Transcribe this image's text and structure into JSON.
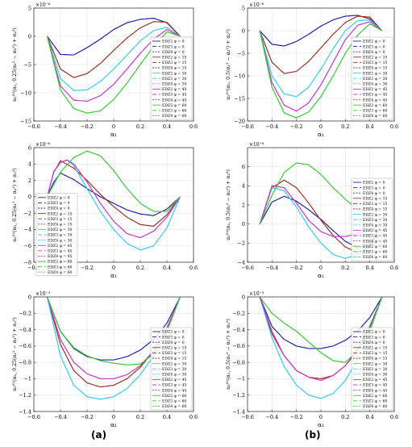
{
  "figure": {
    "label_a": "(a)",
    "label_b": "(b)"
  },
  "legend_labels": [
    "EDZ2 φ = 0",
    "EDZ3 φ = 0",
    "EDZ4 φ = 0",
    "EDZ2 φ = 15",
    "EDZ3 φ = 15",
    "EDZ4 φ = 15",
    "EDZ2 φ = 30",
    "EDZ3 φ = 30",
    "EDZ4 φ = 30",
    "EDZ2 φ = 45",
    "EDZ3 φ = 45",
    "EDZ4 φ = 45",
    "EDZ2 φ = 60",
    "EDZ3 φ = 60",
    "EDZ4 φ = 60"
  ],
  "phi_colors": {
    "0": "#2222aa",
    "15": "#993322",
    "30": "#33ccee",
    "45": "#cc33cc",
    "60": "#33cc33"
  },
  "chart_data": [
    {
      "id": "a1",
      "type": "line",
      "column": "a",
      "row": 1,
      "ylabel": "u₃⁽⁰⁾(α₁, 0.25(α₁² − α₂²) + α₂²)",
      "xlabel": "α₁",
      "exponent": "×10⁻⁶",
      "xlim": [
        -0.6,
        0.6
      ],
      "ylim": [
        -15,
        5
      ],
      "xticks": [
        -0.6,
        -0.4,
        -0.2,
        0,
        0.2,
        0.4,
        0.6
      ],
      "yticks": [
        -15,
        -10,
        -5,
        0,
        5
      ],
      "grid": true,
      "legend": "right",
      "series": [
        {
          "phi": 0,
          "x": [
            -0.5,
            -0.4,
            -0.3,
            -0.2,
            -0.1,
            0,
            0.1,
            0.2,
            0.3,
            0.4,
            0.5
          ],
          "y": [
            0,
            -3.2,
            -3.3,
            -2.0,
            -0.5,
            1.2,
            2.4,
            3.0,
            3.2,
            2.4,
            0
          ]
        },
        {
          "phi": 15,
          "x": [
            -0.5,
            -0.4,
            -0.3,
            -0.2,
            -0.1,
            0,
            0.1,
            0.2,
            0.3,
            0.4,
            0.5
          ],
          "y": [
            0,
            -5.8,
            -7.3,
            -6.6,
            -4.8,
            -2.5,
            -0.3,
            1.5,
            2.6,
            2.5,
            0
          ]
        },
        {
          "phi": 30,
          "x": [
            -0.5,
            -0.4,
            -0.3,
            -0.2,
            -0.1,
            0,
            0.1,
            0.2,
            0.3,
            0.4,
            0.5
          ],
          "y": [
            0,
            -7.5,
            -9.6,
            -9.5,
            -8.0,
            -5.8,
            -3.3,
            -0.8,
            1.0,
            1.6,
            0
          ]
        },
        {
          "phi": 45,
          "x": [
            -0.5,
            -0.4,
            -0.3,
            -0.2,
            -0.1,
            0,
            0.1,
            0.2,
            0.3,
            0.4,
            0.5
          ],
          "y": [
            0,
            -8.8,
            -11.3,
            -11.5,
            -10.5,
            -8.5,
            -5.8,
            -3.0,
            -0.5,
            1.2,
            0
          ]
        },
        {
          "phi": 60,
          "x": [
            -0.5,
            -0.4,
            -0.3,
            -0.2,
            -0.1,
            0,
            0.1,
            0.2,
            0.3,
            0.4,
            0.5
          ],
          "y": [
            0,
            -9.5,
            -12.8,
            -13.6,
            -13.2,
            -11.2,
            -8.3,
            -5.0,
            -1.8,
            0.8,
            0
          ]
        }
      ]
    },
    {
      "id": "b1",
      "type": "line",
      "column": "b",
      "row": 1,
      "ylabel": "u₃⁽⁰⁾(α₁, 0.5(α₁² − α₂²) + α₂²)",
      "xlabel": "α₁",
      "exponent": "×10⁻⁶",
      "xlim": [
        -0.6,
        0.6
      ],
      "ylim": [
        -20,
        5
      ],
      "xticks": [
        -0.6,
        -0.4,
        -0.2,
        0,
        0.2,
        0.4,
        0.6
      ],
      "yticks": [
        -20,
        -15,
        -10,
        -5,
        0,
        5
      ],
      "grid": true,
      "legend": "right",
      "series": [
        {
          "phi": 0,
          "x": [
            -0.5,
            -0.4,
            -0.3,
            -0.2,
            -0.1,
            0,
            0.1,
            0.2,
            0.3,
            0.4,
            0.5
          ],
          "y": [
            0,
            -3.0,
            -3.4,
            -2.4,
            -0.8,
            1.0,
            2.4,
            3.2,
            3.4,
            2.6,
            0
          ]
        },
        {
          "phi": 15,
          "x": [
            -0.5,
            -0.4,
            -0.3,
            -0.2,
            -0.1,
            0,
            0.1,
            0.2,
            0.3,
            0.4,
            0.5
          ],
          "y": [
            0,
            -7.0,
            -9.5,
            -9.0,
            -6.8,
            -3.8,
            -0.8,
            1.8,
            3.2,
            3.0,
            0
          ]
        },
        {
          "phi": 30,
          "x": [
            -0.5,
            -0.4,
            -0.3,
            -0.2,
            -0.1,
            0,
            0.1,
            0.2,
            0.3,
            0.4,
            0.5
          ],
          "y": [
            0,
            -10.0,
            -14.0,
            -14.6,
            -12.5,
            -8.5,
            -4.0,
            0.0,
            2.2,
            2.4,
            0
          ]
        },
        {
          "phi": 45,
          "x": [
            -0.5,
            -0.4,
            -0.3,
            -0.2,
            -0.1,
            0,
            0.1,
            0.2,
            0.3,
            0.4,
            0.5
          ],
          "y": [
            0,
            -11.5,
            -16.5,
            -17.8,
            -16.0,
            -12.0,
            -7.0,
            -2.0,
            1.2,
            2.0,
            0
          ]
        },
        {
          "phi": 60,
          "x": [
            -0.5,
            -0.4,
            -0.3,
            -0.2,
            -0.1,
            0,
            0.1,
            0.2,
            0.3,
            0.4,
            0.5
          ],
          "y": [
            0,
            -12.5,
            -18.2,
            -19.3,
            -18.0,
            -14.6,
            -10.0,
            -5.0,
            -1.0,
            1.5,
            0
          ]
        }
      ]
    },
    {
      "id": "a2",
      "type": "line",
      "column": "a",
      "row": 2,
      "ylabel": "u₃⁽⁰⁾(α₁, 0.25(α₁² − α₂²) + α₂²)",
      "xlabel": "α₁",
      "exponent": "×10⁻⁶",
      "xlim": [
        -0.6,
        0.6
      ],
      "ylim": [
        -8,
        6
      ],
      "xticks": [
        -0.6,
        -0.4,
        -0.2,
        0,
        0.2,
        0.4,
        0.6
      ],
      "yticks": [
        -8,
        -6,
        -4,
        -2,
        0,
        2,
        4,
        6
      ],
      "grid": true,
      "legend": "left",
      "series": [
        {
          "phi": 0,
          "x": [
            -0.5,
            -0.45,
            -0.4,
            -0.3,
            -0.2,
            -0.1,
            0,
            0.1,
            0.2,
            0.3,
            0.4,
            0.5
          ],
          "y": [
            0,
            1.8,
            2.9,
            2.1,
            1.0,
            0.0,
            -0.8,
            -1.6,
            -2.1,
            -2.3,
            -1.5,
            0
          ]
        },
        {
          "phi": 15,
          "x": [
            -0.5,
            -0.45,
            -0.4,
            -0.3,
            -0.2,
            -0.1,
            0,
            0.1,
            0.2,
            0.3,
            0.4,
            0.5
          ],
          "y": [
            0,
            3.0,
            4.4,
            3.5,
            2.0,
            0.3,
            -1.2,
            -2.5,
            -3.4,
            -3.6,
            -2.2,
            0
          ]
        },
        {
          "phi": 30,
          "x": [
            -0.5,
            -0.45,
            -0.4,
            -0.35,
            -0.3,
            -0.2,
            -0.1,
            0,
            0.1,
            0.2,
            0.3,
            0.4,
            0.5
          ],
          "y": [
            0,
            3.0,
            4.2,
            4.5,
            3.8,
            1.0,
            -1.8,
            -4.0,
            -5.7,
            -6.5,
            -6.0,
            -3.8,
            0
          ]
        },
        {
          "phi": 45,
          "x": [
            -0.5,
            -0.45,
            -0.4,
            -0.35,
            -0.3,
            -0.2,
            -0.1,
            0,
            0.1,
            0.2,
            0.3,
            0.4,
            0.5
          ],
          "y": [
            0,
            3.1,
            4.2,
            4.5,
            4.0,
            1.8,
            -0.8,
            -3.0,
            -4.5,
            -5.0,
            -4.2,
            -2.5,
            0
          ]
        },
        {
          "phi": 60,
          "x": [
            -0.5,
            -0.4,
            -0.3,
            -0.2,
            -0.1,
            0,
            0.1,
            0.2,
            0.3,
            0.4,
            0.5
          ],
          "y": [
            0,
            3.0,
            4.8,
            5.6,
            5.0,
            3.2,
            1.0,
            -0.8,
            -1.8,
            -1.8,
            0
          ]
        }
      ]
    },
    {
      "id": "b2",
      "type": "line",
      "column": "b",
      "row": 2,
      "ylabel": "u₃⁽⁰⁾(α₁, 0.5(α₁² − α₂²) + α₂²)",
      "xlabel": "α₁",
      "exponent": "×10⁻⁶",
      "xlim": [
        -0.6,
        0.6
      ],
      "ylim": [
        -4,
        8
      ],
      "xticks": [
        -0.6,
        -0.4,
        -0.2,
        0,
        0.2,
        0.4,
        0.6
      ],
      "yticks": [
        -4,
        -2,
        0,
        2,
        4,
        6
      ],
      "grid": true,
      "legend": "right",
      "series": [
        {
          "phi": 0,
          "x": [
            -0.5,
            -0.4,
            -0.3,
            -0.2,
            -0.1,
            0,
            0.1,
            0.2,
            0.3,
            0.4,
            0.5
          ],
          "y": [
            0,
            2.3,
            2.9,
            2.4,
            1.5,
            0.5,
            -0.7,
            -1.8,
            -2.5,
            -2.3,
            0
          ]
        },
        {
          "phi": 15,
          "x": [
            -0.5,
            -0.4,
            -0.3,
            -0.2,
            -0.1,
            0,
            0.1,
            0.2,
            0.3,
            0.4,
            0.5
          ],
          "y": [
            0,
            3.8,
            4.6,
            3.8,
            2.2,
            0.4,
            -1.2,
            -2.4,
            -3.0,
            -2.4,
            0
          ]
        },
        {
          "phi": 30,
          "x": [
            -0.5,
            -0.4,
            -0.3,
            -0.2,
            -0.1,
            0,
            0.1,
            0.2,
            0.3,
            0.4,
            0.5
          ],
          "y": [
            0,
            3.8,
            3.5,
            1.8,
            -0.3,
            -2.0,
            -3.2,
            -3.6,
            -3.2,
            -2.0,
            0
          ]
        },
        {
          "phi": 45,
          "x": [
            -0.5,
            -0.4,
            -0.3,
            -0.2,
            -0.1,
            0,
            0.1,
            0.2,
            0.3,
            0.4,
            0.5
          ],
          "y": [
            0,
            4.0,
            3.8,
            2.2,
            0.4,
            -0.8,
            -1.3,
            -1.3,
            -1.0,
            -0.6,
            0
          ]
        },
        {
          "phi": 60,
          "x": [
            -0.5,
            -0.4,
            -0.3,
            -0.2,
            -0.1,
            0,
            0.1,
            0.2,
            0.3,
            0.4,
            0.5
          ],
          "y": [
            0,
            3.0,
            5.4,
            6.4,
            6.2,
            5.2,
            3.8,
            2.6,
            1.5,
            0.7,
            0
          ]
        }
      ]
    },
    {
      "id": "a3",
      "type": "line",
      "column": "a",
      "row": 3,
      "ylabel": "u₃⁽⁰⁾(α₁, 0.25(α₁² − α₂²) + α₂²)",
      "xlabel": "α₁",
      "exponent": "×10⁻⁵",
      "xlim": [
        -0.6,
        0.6
      ],
      "ylim": [
        -1.4,
        0
      ],
      "xticks": [
        -0.6,
        -0.4,
        -0.2,
        0,
        0.2,
        0.4,
        0.6
      ],
      "yticks": [
        -1.4,
        -1.2,
        -1,
        -0.8,
        -0.6,
        -0.4,
        -0.2,
        0
      ],
      "grid": true,
      "legend": "right",
      "series": [
        {
          "phi": 0,
          "x": [
            -0.5,
            -0.4,
            -0.3,
            -0.2,
            -0.1,
            0,
            0.1,
            0.2,
            0.3,
            0.4,
            0.5
          ],
          "y": [
            0,
            -0.42,
            -0.63,
            -0.73,
            -0.77,
            -0.77,
            -0.73,
            -0.65,
            -0.52,
            -0.32,
            0
          ]
        },
        {
          "phi": 15,
          "x": [
            -0.5,
            -0.4,
            -0.3,
            -0.2,
            -0.1,
            0,
            0.1,
            0.2,
            0.3,
            0.4,
            0.5
          ],
          "y": [
            0,
            -0.58,
            -0.9,
            -1.05,
            -1.1,
            -1.08,
            -1.0,
            -0.86,
            -0.66,
            -0.38,
            0
          ]
        },
        {
          "phi": 30,
          "x": [
            -0.5,
            -0.4,
            -0.3,
            -0.2,
            -0.1,
            0,
            0.1,
            0.2,
            0.3,
            0.4,
            0.5
          ],
          "y": [
            0,
            -0.72,
            -1.08,
            -1.22,
            -1.25,
            -1.22,
            -1.12,
            -0.95,
            -0.72,
            -0.4,
            0
          ]
        },
        {
          "phi": 45,
          "x": [
            -0.5,
            -0.4,
            -0.3,
            -0.2,
            -0.1,
            0,
            0.1,
            0.2,
            0.3,
            0.4,
            0.5
          ],
          "y": [
            0,
            -0.52,
            -0.8,
            -0.94,
            -1.0,
            -1.0,
            -0.95,
            -0.84,
            -0.66,
            -0.38,
            0
          ]
        },
        {
          "phi": 60,
          "x": [
            -0.5,
            -0.4,
            -0.3,
            -0.2,
            -0.1,
            0,
            0.1,
            0.2,
            0.3,
            0.4,
            0.5
          ],
          "y": [
            0,
            -0.42,
            -0.62,
            -0.72,
            -0.78,
            -0.81,
            -0.83,
            -0.82,
            -0.7,
            -0.42,
            0
          ]
        }
      ]
    },
    {
      "id": "b3",
      "type": "line",
      "column": "b",
      "row": 3,
      "ylabel": "u₃⁽⁰⁾(α₁, 0.5(α₁² − α₂²) + α₂²)",
      "xlabel": "α₁",
      "exponent": "×10⁻⁵",
      "xlim": [
        -0.6,
        0.6
      ],
      "ylim": [
        -1.4,
        0
      ],
      "xticks": [
        -0.6,
        -0.4,
        -0.2,
        0,
        0.2,
        0.4,
        0.6
      ],
      "yticks": [
        -1.4,
        -1.2,
        -1,
        -0.8,
        -0.6,
        -0.4,
        -0.2,
        0
      ],
      "grid": true,
      "legend": "right",
      "series": [
        {
          "phi": 0,
          "x": [
            -0.5,
            -0.4,
            -0.3,
            -0.2,
            -0.1,
            0,
            0.1,
            0.2,
            0.3,
            0.4,
            0.5
          ],
          "y": [
            0,
            -0.36,
            -0.52,
            -0.6,
            -0.63,
            -0.63,
            -0.6,
            -0.53,
            -0.42,
            -0.25,
            0
          ]
        },
        {
          "phi": 15,
          "x": [
            -0.5,
            -0.4,
            -0.3,
            -0.2,
            -0.1,
            0,
            0.1,
            0.2,
            0.3,
            0.4,
            0.5
          ],
          "y": [
            0,
            -0.45,
            -0.72,
            -0.9,
            -0.98,
            -1.0,
            -0.96,
            -0.84,
            -0.64,
            -0.36,
            0
          ]
        },
        {
          "phi": 30,
          "x": [
            -0.5,
            -0.4,
            -0.3,
            -0.2,
            -0.1,
            0,
            0.1,
            0.2,
            0.3,
            0.4,
            0.5
          ],
          "y": [
            0,
            -0.5,
            -0.85,
            -1.08,
            -1.2,
            -1.24,
            -1.18,
            -1.02,
            -0.76,
            -0.42,
            0
          ]
        },
        {
          "phi": 45,
          "x": [
            -0.5,
            -0.4,
            -0.3,
            -0.2,
            -0.1,
            0,
            0.1,
            0.2,
            0.3,
            0.4,
            0.5
          ],
          "y": [
            0,
            -0.42,
            -0.72,
            -0.9,
            -0.98,
            -1.02,
            -0.96,
            -0.84,
            -0.66,
            -0.38,
            0
          ]
        },
        {
          "phi": 60,
          "x": [
            -0.5,
            -0.4,
            -0.3,
            -0.2,
            -0.1,
            0,
            0.1,
            0.2,
            0.3,
            0.4,
            0.5
          ],
          "y": [
            0,
            -0.2,
            -0.32,
            -0.42,
            -0.55,
            -0.68,
            -0.78,
            -0.8,
            -0.66,
            -0.4,
            0
          ]
        }
      ]
    }
  ]
}
